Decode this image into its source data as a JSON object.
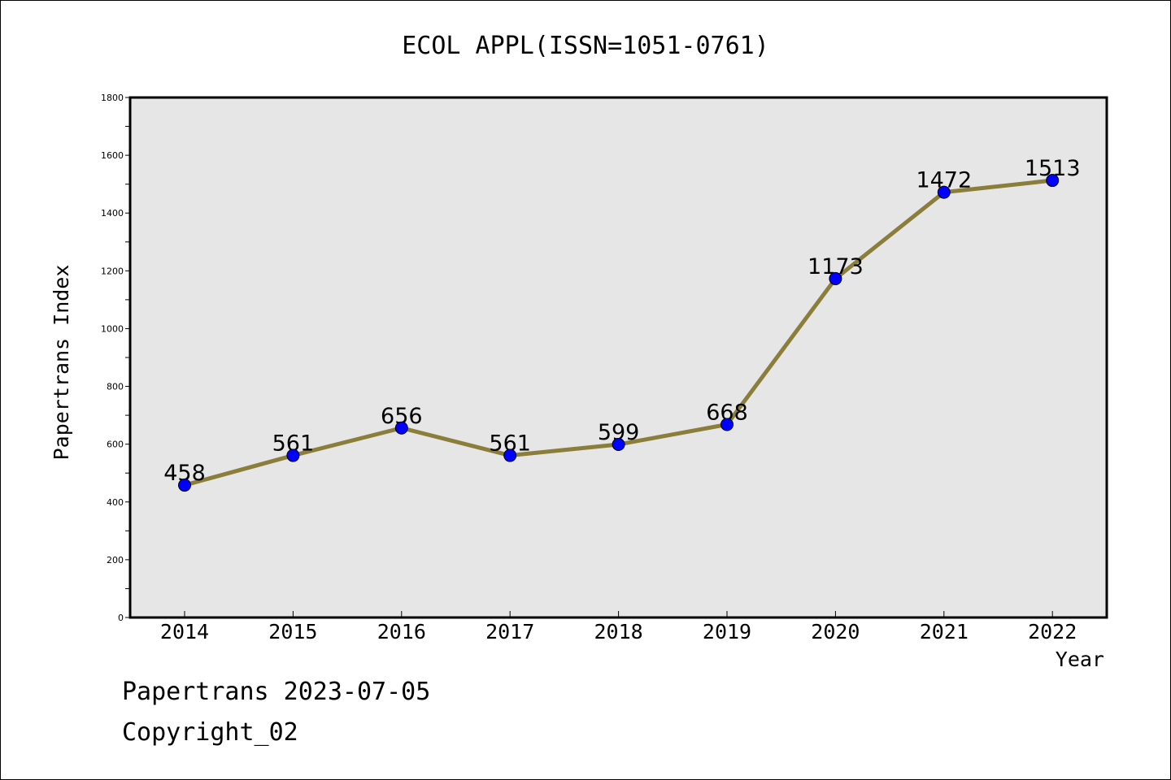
{
  "chart_data": {
    "type": "line",
    "title": "ECOL APPL(ISSN=1051-0761)",
    "xlabel": "Year",
    "ylabel": "Papertrans Index",
    "categories": [
      "2014",
      "2015",
      "2016",
      "2017",
      "2018",
      "2019",
      "2020",
      "2021",
      "2022"
    ],
    "values": [
      458,
      561,
      656,
      561,
      599,
      668,
      1173,
      1472,
      1513
    ],
    "data_labels": [
      "458",
      "561",
      "656",
      "561",
      "599",
      "668",
      "1173",
      "1472",
      "1513"
    ],
    "ylim": [
      0,
      1800
    ],
    "yticks": [
      "0",
      "200",
      "400",
      "600",
      "800",
      "1000",
      "1200",
      "1400",
      "1600",
      "1800"
    ],
    "grid": false,
    "line_color": "#8b7d3a",
    "marker_color": "#0000ff",
    "plot_background": "#e6e6e6"
  },
  "footer": {
    "line1": "Papertrans 2023-07-05",
    "line2": "Copyright_02"
  }
}
